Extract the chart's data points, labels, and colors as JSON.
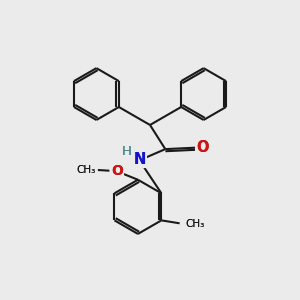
{
  "bg_color": "#ebebeb",
  "bond_color": "#1a1a1a",
  "N_color": "#1414cc",
  "O_color": "#cc1414",
  "H_color": "#4a8888",
  "line_width": 1.5,
  "dbo": 0.07,
  "figsize": [
    3.0,
    3.0
  ],
  "dpi": 100,
  "xlim": [
    0,
    10
  ],
  "ylim": [
    0,
    10
  ]
}
